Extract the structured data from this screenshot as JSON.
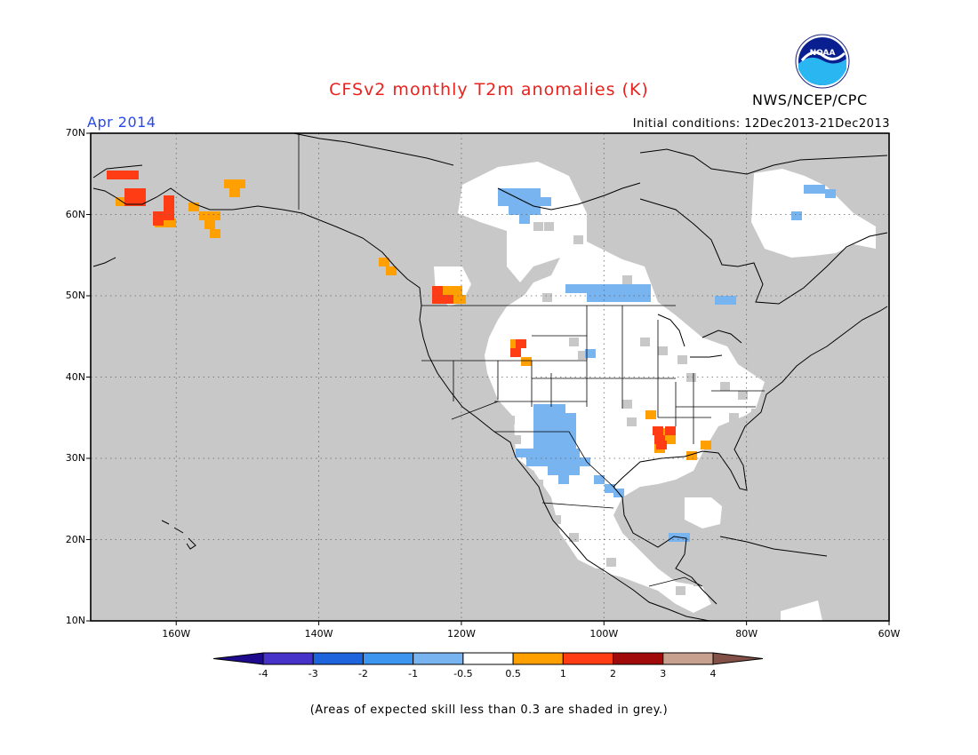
{
  "header": {
    "title": "CFSv2 monthly T2m anomalies (K)",
    "organization": "NWS/NCEP/CPC",
    "logo_text": "NOAA",
    "period": "Apr 2014",
    "initial_conditions": "Initial conditions: 12Dec2013-21Dec2013"
  },
  "map": {
    "lon_range": [
      -172,
      -60
    ],
    "lat_range": [
      10,
      70
    ],
    "lat_ticks": [
      {
        "value": 70,
        "label": "70N"
      },
      {
        "value": 60,
        "label": "60N"
      },
      {
        "value": 50,
        "label": "50N"
      },
      {
        "value": 40,
        "label": "40N"
      },
      {
        "value": 30,
        "label": "30N"
      },
      {
        "value": 20,
        "label": "20N"
      },
      {
        "value": 10,
        "label": "10N"
      }
    ],
    "lon_ticks": [
      {
        "value": -160,
        "label": "160W"
      },
      {
        "value": -140,
        "label": "140W"
      },
      {
        "value": -120,
        "label": "120W"
      },
      {
        "value": -100,
        "label": "100W"
      },
      {
        "value": -80,
        "label": "80W"
      },
      {
        "value": -60,
        "label": "60W"
      }
    ],
    "colors": {
      "grey_low_skill": "#c8c8c8",
      "neutral": "#ffffff",
      "neg_0_5_to_1": "#78b4f0",
      "pos_0_5_to_1": "#ffa000",
      "pos_1_to_2": "#ff3c14"
    }
  },
  "colorbar": {
    "labels": [
      "-4",
      "-3",
      "-2",
      "-1",
      "-0.5",
      "0.5",
      "1",
      "2",
      "3",
      "4"
    ],
    "colors": [
      "#1e0a8c",
      "#4632c8",
      "#1e64dc",
      "#3c96f0",
      "#78b4f0",
      "#ffffff",
      "#ffa000",
      "#ff3c14",
      "#a00a0a",
      "#c8a090",
      "#825046"
    ]
  },
  "footnote": "(Areas of expected skill less than 0.3 are shaded in grey.)"
}
